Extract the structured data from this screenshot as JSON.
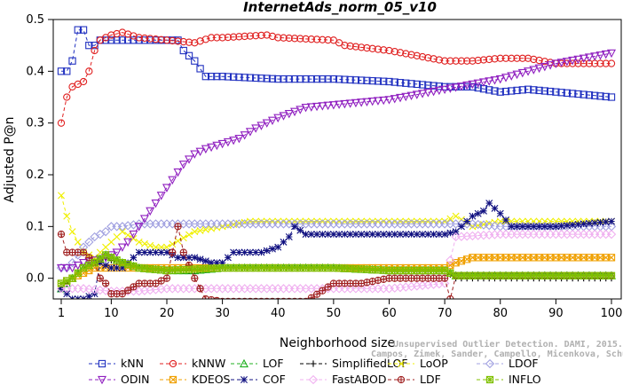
{
  "chart_data": {
    "type": "line",
    "title": "InternetAds_norm_05_v10",
    "xlabel": "Neighborhood size",
    "ylabel": "Adjusted P@n",
    "xlim": [
      0,
      100
    ],
    "ylim": [
      -0.04,
      0.5
    ],
    "xticks": [
      1,
      10,
      20,
      30,
      40,
      50,
      60,
      70,
      80,
      90,
      100
    ],
    "yticks": [
      0.0,
      0.1,
      0.2,
      0.3,
      0.4,
      0.5
    ],
    "ytick_labels": [
      "0.0",
      "0.1",
      "0.2",
      "0.3",
      "0.4",
      "0.5"
    ],
    "watermark": [
      "Unsupervised Outlier Detection. DAMI, 2015.",
      "Campos, Zimek, Sander, Campello, Micenkova, Schubert, Assent, Houle"
    ],
    "legend_position": "bottom",
    "series": [
      {
        "name": "kNN",
        "color": "#2030c0",
        "marker": "square",
        "points": [
          [
            1,
            0.4
          ],
          [
            2,
            0.4
          ],
          [
            3,
            0.42
          ],
          [
            4,
            0.48
          ],
          [
            5,
            0.48
          ],
          [
            6,
            0.45
          ],
          [
            7,
            0.45
          ],
          [
            8,
            0.46
          ],
          [
            10,
            0.46
          ],
          [
            15,
            0.46
          ],
          [
            20,
            0.46
          ],
          [
            22,
            0.46
          ],
          [
            23,
            0.44
          ],
          [
            25,
            0.42
          ],
          [
            27,
            0.39
          ],
          [
            30,
            0.39
          ],
          [
            40,
            0.385
          ],
          [
            50,
            0.385
          ],
          [
            60,
            0.38
          ],
          [
            70,
            0.37
          ],
          [
            75,
            0.37
          ],
          [
            80,
            0.36
          ],
          [
            85,
            0.365
          ],
          [
            90,
            0.36
          ],
          [
            95,
            0.355
          ],
          [
            100,
            0.35
          ]
        ]
      },
      {
        "name": "kNNW",
        "color": "#e02020",
        "marker": "circle",
        "points": [
          [
            1,
            0.3
          ],
          [
            2,
            0.35
          ],
          [
            3,
            0.37
          ],
          [
            4,
            0.375
          ],
          [
            5,
            0.38
          ],
          [
            6,
            0.4
          ],
          [
            7,
            0.44
          ],
          [
            8,
            0.46
          ],
          [
            10,
            0.47
          ],
          [
            12,
            0.475
          ],
          [
            15,
            0.465
          ],
          [
            20,
            0.46
          ],
          [
            25,
            0.455
          ],
          [
            28,
            0.465
          ],
          [
            30,
            0.465
          ],
          [
            38,
            0.47
          ],
          [
            40,
            0.465
          ],
          [
            50,
            0.46
          ],
          [
            52,
            0.45
          ],
          [
            60,
            0.44
          ],
          [
            65,
            0.43
          ],
          [
            70,
            0.42
          ],
          [
            75,
            0.42
          ],
          [
            80,
            0.425
          ],
          [
            85,
            0.425
          ],
          [
            90,
            0.415
          ],
          [
            100,
            0.415
          ]
        ]
      },
      {
        "name": "LOF",
        "color": "#20b020",
        "marker": "triangle-up",
        "points": [
          [
            1,
            -0.02
          ],
          [
            2,
            -0.01
          ],
          [
            3,
            0.0
          ],
          [
            5,
            0.02
          ],
          [
            7,
            0.03
          ],
          [
            9,
            0.045
          ],
          [
            10,
            0.04
          ],
          [
            12,
            0.03
          ],
          [
            15,
            0.02
          ],
          [
            20,
            0.015
          ],
          [
            25,
            0.015
          ],
          [
            30,
            0.02
          ],
          [
            40,
            0.02
          ],
          [
            50,
            0.02
          ],
          [
            60,
            0.015
          ],
          [
            70,
            0.015
          ],
          [
            72,
            0.005
          ],
          [
            80,
            0.005
          ],
          [
            90,
            0.005
          ],
          [
            100,
            0.005
          ]
        ]
      },
      {
        "name": "SimplifiedLOF",
        "color": "#000000",
        "marker": "plus",
        "points": [
          [
            1,
            -0.02
          ],
          [
            2,
            -0.01
          ],
          [
            3,
            0.0
          ],
          [
            5,
            0.02
          ],
          [
            7,
            0.03
          ],
          [
            9,
            0.04
          ],
          [
            10,
            0.035
          ],
          [
            12,
            0.03
          ],
          [
            15,
            0.02
          ],
          [
            20,
            0.015
          ],
          [
            25,
            0.015
          ],
          [
            30,
            0.02
          ],
          [
            40,
            0.02
          ],
          [
            50,
            0.02
          ],
          [
            60,
            0.015
          ],
          [
            70,
            0.015
          ],
          [
            72,
            0.0
          ],
          [
            80,
            0.0
          ],
          [
            90,
            0.0
          ],
          [
            100,
            0.0
          ]
        ]
      },
      {
        "name": "LoOP",
        "color": "#f0f000",
        "marker": "x",
        "points": [
          [
            1,
            0.16
          ],
          [
            2,
            0.12
          ],
          [
            3,
            0.09
          ],
          [
            5,
            0.05
          ],
          [
            7,
            0.04
          ],
          [
            9,
            0.06
          ],
          [
            10,
            0.07
          ],
          [
            12,
            0.09
          ],
          [
            15,
            0.07
          ],
          [
            18,
            0.06
          ],
          [
            20,
            0.06
          ],
          [
            25,
            0.09
          ],
          [
            30,
            0.1
          ],
          [
            35,
            0.11
          ],
          [
            40,
            0.11
          ],
          [
            50,
            0.11
          ],
          [
            60,
            0.11
          ],
          [
            65,
            0.11
          ],
          [
            70,
            0.11
          ],
          [
            72,
            0.12
          ],
          [
            75,
            0.1
          ],
          [
            80,
            0.11
          ],
          [
            85,
            0.11
          ],
          [
            90,
            0.11
          ],
          [
            100,
            0.11
          ]
        ]
      },
      {
        "name": "LDOF",
        "color": "#a0a0e0",
        "marker": "diamond",
        "points": [
          [
            1,
            0.02
          ],
          [
            2,
            0.02
          ],
          [
            3,
            0.03
          ],
          [
            5,
            0.06
          ],
          [
            7,
            0.08
          ],
          [
            9,
            0.09
          ],
          [
            10,
            0.1
          ],
          [
            12,
            0.1
          ],
          [
            15,
            0.105
          ],
          [
            20,
            0.105
          ],
          [
            25,
            0.105
          ],
          [
            30,
            0.105
          ],
          [
            40,
            0.105
          ],
          [
            50,
            0.105
          ],
          [
            60,
            0.105
          ],
          [
            70,
            0.105
          ],
          [
            75,
            0.105
          ],
          [
            80,
            0.1
          ],
          [
            90,
            0.1
          ],
          [
            100,
            0.1
          ]
        ]
      },
      {
        "name": "ODIN",
        "color": "#9020c0",
        "marker": "triangle-down",
        "points": [
          [
            1,
            0.02
          ],
          [
            3,
            0.02
          ],
          [
            5,
            0.03
          ],
          [
            7,
            0.035
          ],
          [
            9,
            0.04
          ],
          [
            11,
            0.05
          ],
          [
            13,
            0.07
          ],
          [
            15,
            0.1
          ],
          [
            17,
            0.13
          ],
          [
            19,
            0.16
          ],
          [
            21,
            0.19
          ],
          [
            23,
            0.22
          ],
          [
            25,
            0.24
          ],
          [
            27,
            0.25
          ],
          [
            30,
            0.26
          ],
          [
            33,
            0.27
          ],
          [
            36,
            0.29
          ],
          [
            40,
            0.31
          ],
          [
            45,
            0.33
          ],
          [
            50,
            0.335
          ],
          [
            55,
            0.34
          ],
          [
            60,
            0.345
          ],
          [
            65,
            0.355
          ],
          [
            70,
            0.365
          ],
          [
            75,
            0.375
          ],
          [
            80,
            0.385
          ],
          [
            85,
            0.4
          ],
          [
            90,
            0.415
          ],
          [
            95,
            0.425
          ],
          [
            100,
            0.435
          ]
        ]
      },
      {
        "name": "KDEOS",
        "color": "#f0a000",
        "marker": "square-x",
        "points": [
          [
            1,
            -0.01
          ],
          [
            3,
            0.0
          ],
          [
            5,
            0.01
          ],
          [
            7,
            0.02
          ],
          [
            9,
            0.02
          ],
          [
            10,
            0.02
          ],
          [
            15,
            0.02
          ],
          [
            20,
            0.02
          ],
          [
            30,
            0.02
          ],
          [
            40,
            0.02
          ],
          [
            50,
            0.02
          ],
          [
            60,
            0.02
          ],
          [
            70,
            0.02
          ],
          [
            72,
            0.03
          ],
          [
            75,
            0.04
          ],
          [
            80,
            0.04
          ],
          [
            90,
            0.04
          ],
          [
            100,
            0.04
          ]
        ]
      },
      {
        "name": "COF",
        "color": "#101080",
        "marker": "star",
        "points": [
          [
            1,
            -0.02
          ],
          [
            2,
            -0.03
          ],
          [
            3,
            -0.04
          ],
          [
            5,
            -0.04
          ],
          [
            7,
            -0.03
          ],
          [
            8,
            0.03
          ],
          [
            10,
            0.02
          ],
          [
            12,
            0.02
          ],
          [
            15,
            0.05
          ],
          [
            18,
            0.05
          ],
          [
            20,
            0.05
          ],
          [
            22,
            0.04
          ],
          [
            25,
            0.04
          ],
          [
            28,
            0.03
          ],
          [
            30,
            0.03
          ],
          [
            32,
            0.05
          ],
          [
            35,
            0.05
          ],
          [
            37,
            0.05
          ],
          [
            40,
            0.06
          ],
          [
            42,
            0.08
          ],
          [
            43,
            0.1
          ],
          [
            45,
            0.085
          ],
          [
            50,
            0.085
          ],
          [
            55,
            0.085
          ],
          [
            60,
            0.085
          ],
          [
            65,
            0.085
          ],
          [
            70,
            0.085
          ],
          [
            72,
            0.09
          ],
          [
            75,
            0.12
          ],
          [
            77,
            0.13
          ],
          [
            78,
            0.145
          ],
          [
            80,
            0.125
          ],
          [
            82,
            0.1
          ],
          [
            85,
            0.1
          ],
          [
            90,
            0.1
          ],
          [
            95,
            0.105
          ],
          [
            100,
            0.11
          ]
        ]
      },
      {
        "name": "FastABOD",
        "color": "#f0b0f0",
        "marker": "diamond",
        "points": [
          [
            1,
            -0.02
          ],
          [
            5,
            -0.02
          ],
          [
            10,
            -0.025
          ],
          [
            15,
            -0.025
          ],
          [
            20,
            -0.02
          ],
          [
            30,
            -0.02
          ],
          [
            40,
            -0.02
          ],
          [
            50,
            -0.02
          ],
          [
            60,
            -0.02
          ],
          [
            70,
            -0.01
          ],
          [
            72,
            0.08
          ],
          [
            80,
            0.085
          ],
          [
            90,
            0.085
          ],
          [
            100,
            0.085
          ]
        ]
      },
      {
        "name": "LDF",
        "color": "#a02020",
        "marker": "circle-plus",
        "points": [
          [
            1,
            0.085
          ],
          [
            2,
            0.05
          ],
          [
            3,
            0.05
          ],
          [
            5,
            0.05
          ],
          [
            7,
            0.03
          ],
          [
            8,
            0.0
          ],
          [
            9,
            -0.01
          ],
          [
            10,
            -0.03
          ],
          [
            12,
            -0.03
          ],
          [
            15,
            -0.01
          ],
          [
            18,
            -0.01
          ],
          [
            20,
            0.0
          ],
          [
            22,
            0.1
          ],
          [
            23,
            0.05
          ],
          [
            25,
            0.0
          ],
          [
            27,
            -0.04
          ],
          [
            30,
            -0.045
          ],
          [
            35,
            -0.045
          ],
          [
            40,
            -0.045
          ],
          [
            45,
            -0.045
          ],
          [
            50,
            -0.01
          ],
          [
            55,
            -0.01
          ],
          [
            60,
            0.0
          ],
          [
            65,
            0.0
          ],
          [
            70,
            0.0
          ],
          [
            71,
            -0.04
          ],
          [
            72,
            0.005
          ],
          [
            80,
            0.005
          ],
          [
            90,
            0.005
          ],
          [
            100,
            0.005
          ]
        ]
      },
      {
        "name": "INFLO",
        "color": "#80c000",
        "marker": "asterisk-box",
        "points": [
          [
            1,
            -0.01
          ],
          [
            3,
            0.0
          ],
          [
            5,
            0.02
          ],
          [
            7,
            0.03
          ],
          [
            9,
            0.045
          ],
          [
            10,
            0.04
          ],
          [
            12,
            0.03
          ],
          [
            15,
            0.02
          ],
          [
            20,
            0.015
          ],
          [
            30,
            0.02
          ],
          [
            40,
            0.02
          ],
          [
            50,
            0.02
          ],
          [
            60,
            0.015
          ],
          [
            70,
            0.015
          ],
          [
            72,
            0.005
          ],
          [
            80,
            0.005
          ],
          [
            90,
            0.005
          ],
          [
            100,
            0.005
          ]
        ]
      }
    ]
  }
}
